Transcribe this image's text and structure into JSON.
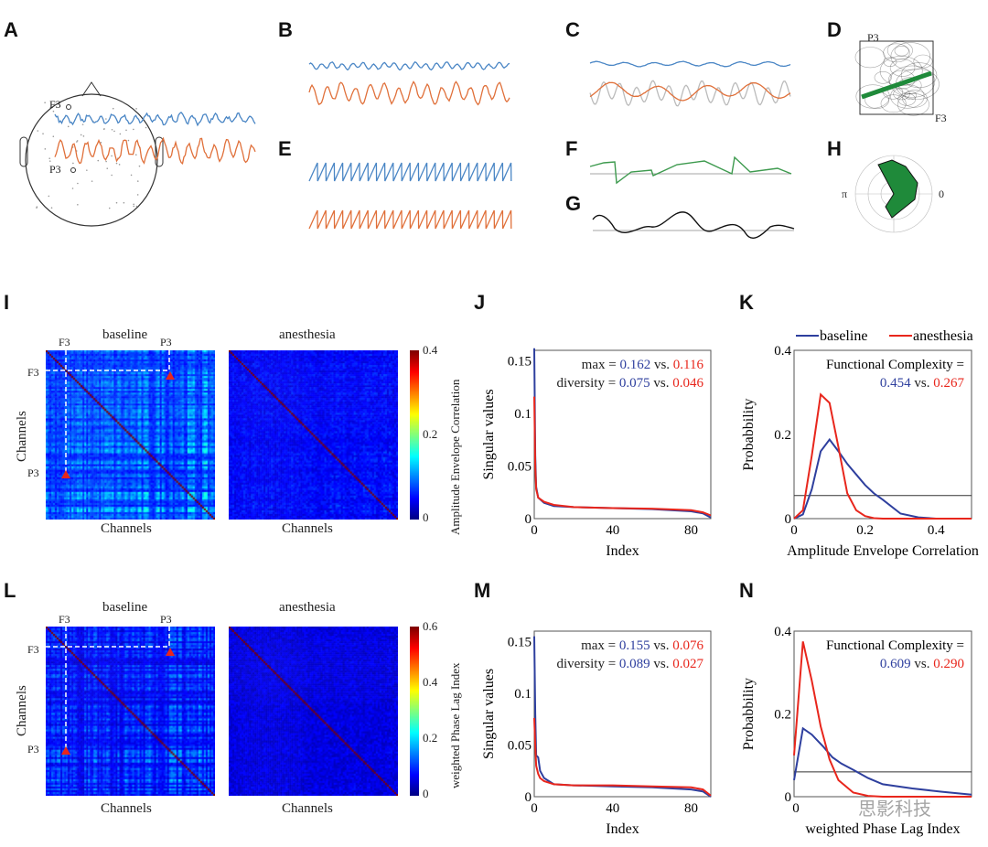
{
  "panel_labels": [
    "A",
    "B",
    "C",
    "D",
    "E",
    "F",
    "G",
    "H",
    "I",
    "J",
    "K",
    "L",
    "M",
    "N"
  ],
  "panel_a": {
    "electrode_top": "F3",
    "electrode_bottom": "P3"
  },
  "panel_d": {
    "y_label": "P3",
    "x_label": "F3"
  },
  "panel_h": {
    "left_label": "π",
    "right_label": "0"
  },
  "colors": {
    "baseline": "#2e3f9e",
    "anesthesia": "#e8261c",
    "trace_blue": "#4a86c5",
    "trace_orange": "#e0703a",
    "green": "#1f8a3a"
  },
  "panel_i": {
    "title_left": "baseline",
    "title_right": "anesthesia",
    "marker_f3": "F3",
    "marker_p3": "P3",
    "ylabel": "Channels",
    "xlabel_left": "Channels",
    "xlabel_right": "Channels",
    "colorbar_label": "Amplitude Envelope Correlation",
    "colorbar_ticks": [
      "0.4",
      "0.2",
      "0"
    ],
    "colorbar_range": [
      0,
      0.4
    ]
  },
  "panel_l": {
    "title_left": "baseline",
    "title_right": "anesthesia",
    "marker_f3": "F3",
    "marker_p3": "P3",
    "ylabel": "Channels",
    "xlabel_left": "Channels",
    "xlabel_right": "Channels",
    "colorbar_label": "weighted Phase Lag Index",
    "colorbar_ticks": [
      "0.6",
      "0.4",
      "0.2",
      "0"
    ],
    "colorbar_range": [
      0,
      0.6
    ]
  },
  "chart_data": [
    {
      "panel": "J",
      "type": "line",
      "xlabel": "Index",
      "ylabel": "Singular values",
      "xlim": [
        0,
        90
      ],
      "ylim": [
        0,
        0.16
      ],
      "xticks": [
        "0",
        "40",
        "80"
      ],
      "yticks": [
        "0",
        "0.05",
        "0.1",
        "0.15"
      ],
      "annotation": {
        "max_label": "max =",
        "max_baseline": "0.162",
        "max_anesthesia": "0.116",
        "diversity_label": "diversity =",
        "diversity_baseline": "0.075",
        "diversity_anesthesia": "0.046",
        "vs": "vs."
      },
      "series": [
        {
          "name": "baseline",
          "x": [
            0,
            0.5,
            1,
            2,
            5,
            10,
            20,
            40,
            60,
            80,
            86,
            90
          ],
          "y": [
            0.162,
            0.06,
            0.03,
            0.02,
            0.015,
            0.012,
            0.011,
            0.01,
            0.009,
            0.007,
            0.005,
            0.001
          ]
        },
        {
          "name": "anesthesia",
          "x": [
            0,
            0.5,
            1,
            2,
            5,
            10,
            20,
            40,
            60,
            80,
            86,
            90
          ],
          "y": [
            0.116,
            0.05,
            0.028,
            0.02,
            0.016,
            0.013,
            0.011,
            0.01,
            0.0095,
            0.008,
            0.006,
            0.003
          ]
        }
      ]
    },
    {
      "panel": "K",
      "type": "line",
      "xlabel": "Amplitude Envelope Correlation",
      "ylabel": "Probabbility",
      "xlim": [
        0,
        0.5
      ],
      "ylim": [
        0,
        0.4
      ],
      "xticks": [
        "0",
        "0.2",
        "0.4"
      ],
      "yticks": [
        "0",
        "0.2",
        "0.4"
      ],
      "legend": "top",
      "annotation": {
        "label": "Functional Complexity =",
        "baseline": "0.454",
        "anesthesia": "0.267",
        "vs": "vs."
      },
      "reference_line": 0.055,
      "series": [
        {
          "name": "baseline",
          "x": [
            0,
            0.025,
            0.05,
            0.075,
            0.1,
            0.125,
            0.15,
            0.175,
            0.2,
            0.225,
            0.25,
            0.3,
            0.35,
            0.4,
            0.5
          ],
          "y": [
            0,
            0.01,
            0.07,
            0.16,
            0.188,
            0.16,
            0.13,
            0.105,
            0.08,
            0.06,
            0.045,
            0.012,
            0.003,
            0,
            0
          ]
        },
        {
          "name": "anesthesia",
          "x": [
            0,
            0.025,
            0.05,
            0.075,
            0.1,
            0.125,
            0.15,
            0.175,
            0.2,
            0.225,
            0.25,
            0.3,
            0.35,
            0.4,
            0.5
          ],
          "y": [
            0,
            0.02,
            0.15,
            0.295,
            0.275,
            0.17,
            0.06,
            0.02,
            0.006,
            0.001,
            0,
            0,
            0,
            0,
            0
          ]
        }
      ]
    },
    {
      "panel": "M",
      "type": "line",
      "xlabel": "Index",
      "ylabel": "Singular values",
      "xlim": [
        0,
        90
      ],
      "ylim": [
        0,
        0.16
      ],
      "xticks": [
        "0",
        "40",
        "80"
      ],
      "yticks": [
        "0",
        "0.05",
        "0.1",
        "0.15"
      ],
      "annotation": {
        "max_label": "max =",
        "max_baseline": "0.155",
        "max_anesthesia": "0.076",
        "diversity_label": "diversity =",
        "diversity_baseline": "0.089",
        "diversity_anesthesia": "0.027",
        "vs": "vs."
      },
      "series": [
        {
          "name": "baseline",
          "x": [
            0,
            0.5,
            1,
            2,
            3,
            5,
            10,
            20,
            40,
            60,
            80,
            86,
            90
          ],
          "y": [
            0.155,
            0.08,
            0.04,
            0.038,
            0.025,
            0.018,
            0.012,
            0.011,
            0.01,
            0.009,
            0.007,
            0.005,
            0
          ]
        },
        {
          "name": "anesthesia",
          "x": [
            0,
            0.5,
            1,
            2,
            3,
            5,
            10,
            20,
            40,
            60,
            80,
            86,
            90
          ],
          "y": [
            0.076,
            0.05,
            0.03,
            0.022,
            0.018,
            0.015,
            0.012,
            0.011,
            0.011,
            0.01,
            0.009,
            0.007,
            0.001
          ]
        }
      ]
    },
    {
      "panel": "N",
      "type": "line",
      "xlabel": "weighted Phase Lag Index",
      "ylabel": "Probabbility",
      "ylim": [
        0,
        0.4
      ],
      "xticks": [
        "0"
      ],
      "yticks": [
        "0",
        "0.2",
        "0.4"
      ],
      "annotation": {
        "label": "Functional Complexity =",
        "baseline": "0.609",
        "anesthesia": "0.290",
        "vs": "vs."
      },
      "reference_line": 0.06,
      "series": [
        {
          "name": "baseline",
          "x": [
            0,
            0.03,
            0.06,
            0.1,
            0.13,
            0.16,
            0.2,
            0.25,
            0.3,
            0.4,
            0.5,
            0.6
          ],
          "y": [
            0.04,
            0.165,
            0.15,
            0.12,
            0.095,
            0.08,
            0.065,
            0.045,
            0.03,
            0.02,
            0.012,
            0.005
          ]
        },
        {
          "name": "anesthesia",
          "x": [
            0,
            0.03,
            0.06,
            0.09,
            0.12,
            0.15,
            0.2,
            0.25,
            0.3,
            0.6
          ],
          "y": [
            0.1,
            0.375,
            0.28,
            0.17,
            0.09,
            0.04,
            0.01,
            0.002,
            0,
            0
          ]
        }
      ]
    }
  ],
  "watermark": "思影科技"
}
